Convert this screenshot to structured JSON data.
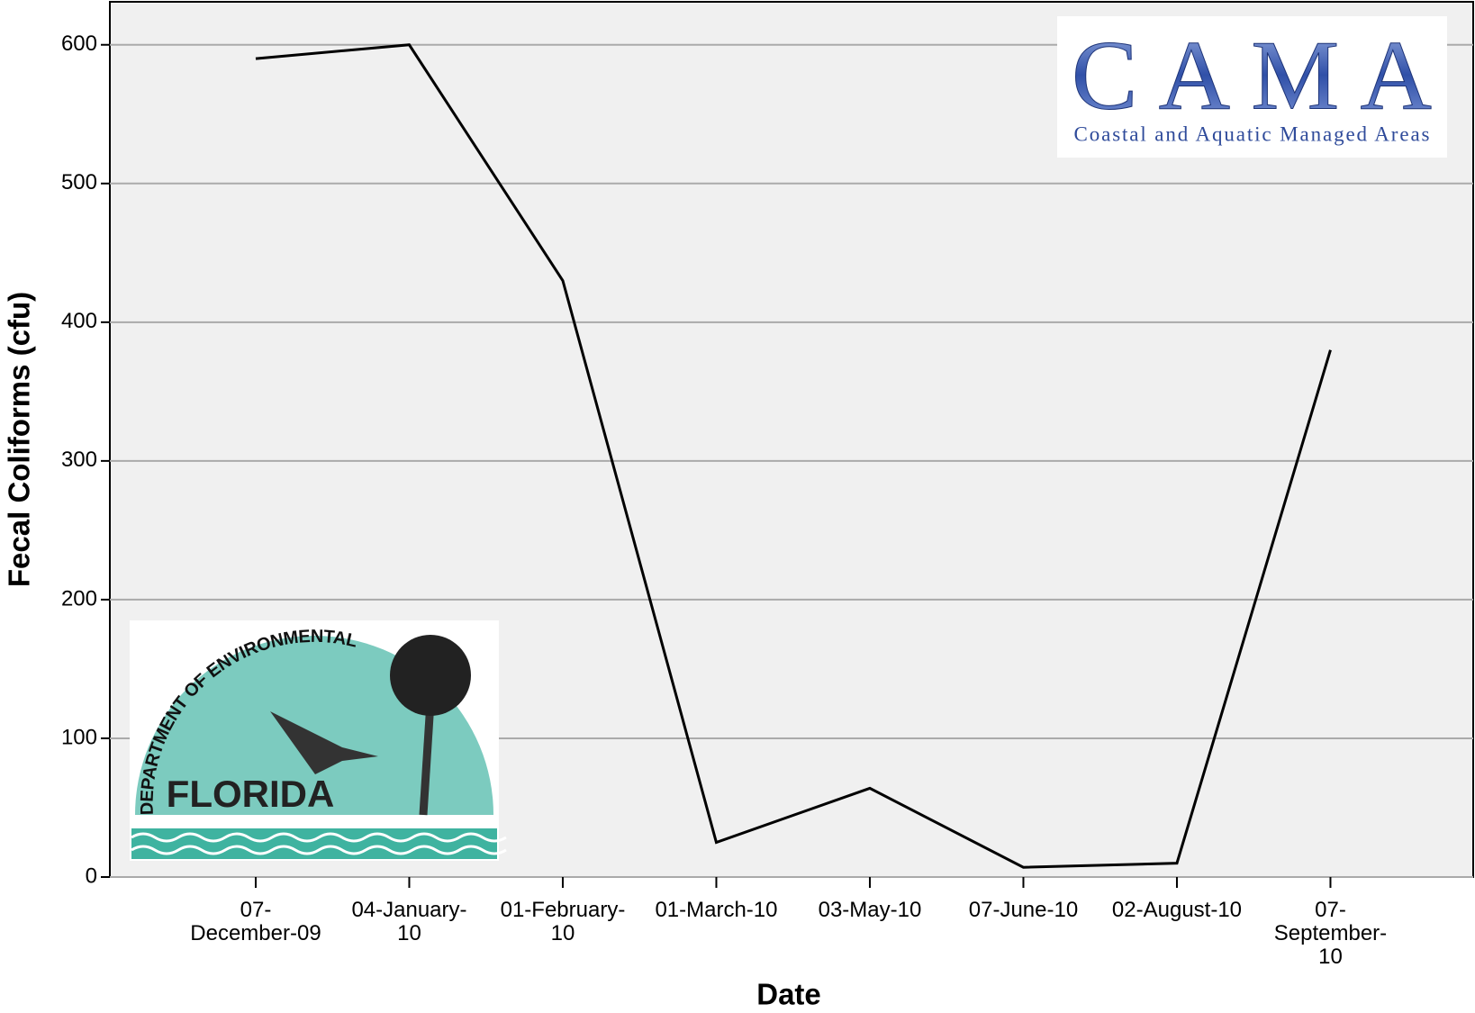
{
  "chart_data": {
    "type": "line",
    "x_label": "Date",
    "y_label": "Fecal Coliforms (cfu)",
    "categories": [
      "07-December-09",
      "04-January-10",
      "01-February-10",
      "01-March-10",
      "03-May-10",
      "07-June-10",
      "02-August-10",
      "07-September-10"
    ],
    "series": [
      {
        "color": "#000000",
        "values": [
          590,
          600,
          430,
          25,
          64,
          7,
          10,
          380
        ]
      }
    ],
    "ylim": [
      0,
      631
    ],
    "yticks": [
      0,
      100,
      200,
      300,
      400,
      500,
      600
    ],
    "grid": true
  },
  "logos": {
    "cama": {
      "title": "CAMA",
      "subtitle": "Coastal and Aquatic Managed Areas"
    },
    "florida": {
      "arc_text": "DEPARTMENT OF ENVIRONMENTAL PROTECTION",
      "name": "FLORIDA"
    }
  }
}
